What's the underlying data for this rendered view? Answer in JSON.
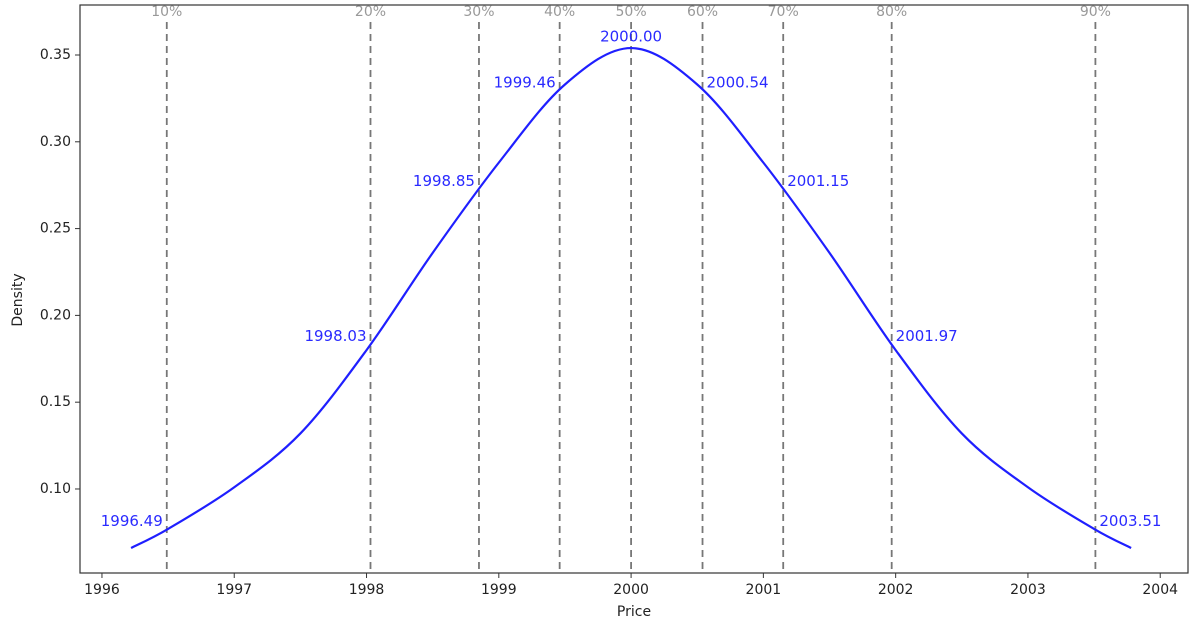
{
  "chart_data": {
    "type": "line",
    "x_label": "Price",
    "y_label": "Density",
    "x": [
      1996.22,
      1996.5,
      1997,
      1997.5,
      1998,
      1998.5,
      1999,
      1999.5,
      2000,
      2000.5,
      2001,
      2001.5,
      2002,
      2002.5,
      2003,
      2003.5,
      2003.78
    ],
    "series": [
      {
        "color": "#1f1fff",
        "values": [
          0.066,
          0.077,
          0.101,
          0.132,
          0.18,
          0.236,
          0.288,
          0.333,
          0.354,
          0.333,
          0.288,
          0.236,
          0.18,
          0.132,
          0.101,
          0.077,
          0.066
        ]
      }
    ],
    "quantile_lines": {
      "color": "#777777",
      "names": [
        "10%",
        "20%",
        "30%",
        "40%",
        "50%",
        "60%",
        "70%",
        "80%",
        "90%"
      ],
      "values": [
        1996.49,
        1998.03,
        1998.85,
        1999.46,
        2000,
        2000.54,
        2001.15,
        2001.97,
        2003.51
      ],
      "value_labels": [
        "1996.49",
        "1998.03",
        "1998.85",
        "1999.46",
        "2000.00",
        "2000.54",
        "2001.15",
        "2001.97",
        "2003.51"
      ]
    },
    "xlim": [
      1995.834,
      2004.21
    ],
    "ylim": [
      0.0516,
      0.3788
    ],
    "xticks": [
      1996,
      1997,
      1998,
      1999,
      2000,
      2001,
      2002,
      2003,
      2004
    ],
    "yticks": [
      0.1,
      0.15,
      0.2,
      0.25,
      0.3,
      0.35
    ]
  }
}
